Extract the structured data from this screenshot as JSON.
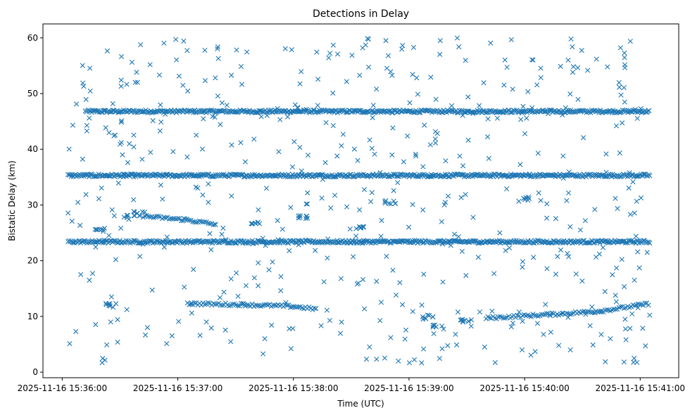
{
  "chart_data": {
    "type": "scatter",
    "title": "Detections in Delay",
    "xlabel": "Time (UTC)",
    "ylabel": "Bistatic Delay (km)",
    "marker": "x",
    "color": "#1f77b4",
    "grid": false,
    "legend": "none",
    "xlim": [
      "2025-11-16 15:35:50",
      "2025-11-16 15:41:20"
    ],
    "ylim": [
      -1,
      62.5
    ],
    "x_ticks": [
      "2025-11-16 15:36:00",
      "2025-11-16 15:37:00",
      "2025-11-16 15:38:00",
      "2025-11-16 15:39:00",
      "2025-11-16 15:40:00",
      "2025-11-16 15:41:00"
    ],
    "y_ticks": [
      0,
      10,
      20,
      30,
      40,
      50,
      60
    ],
    "time_range": [
      "2025-11-16 15:36:03",
      "2025-11-16 15:41:05"
    ],
    "series": [
      {
        "kind": "band",
        "y": 46.8,
        "from": "2025-11-16 15:36:12",
        "to": "2025-11-16 15:41:05"
      },
      {
        "kind": "band",
        "y": 35.3,
        "from": "2025-11-16 15:36:03",
        "to": "2025-11-16 15:41:05"
      },
      {
        "kind": "band",
        "y": 23.4,
        "from": "2025-11-16 15:36:03",
        "to": "2025-11-16 15:41:05"
      },
      {
        "kind": "track",
        "points": [
          [
            "2025-11-16 15:37:05",
            12.3
          ],
          [
            "2025-11-16 15:37:35",
            12.1
          ],
          [
            "2025-11-16 15:38:00",
            11.8
          ],
          [
            "2025-11-16 15:38:12",
            11.3
          ]
        ]
      },
      {
        "kind": "track",
        "points": [
          [
            "2025-11-16 15:39:40",
            9.7
          ],
          [
            "2025-11-16 15:40:20",
            10.5
          ],
          [
            "2025-11-16 15:40:40",
            11.0
          ],
          [
            "2025-11-16 15:41:05",
            12.3
          ]
        ]
      },
      {
        "kind": "track",
        "points": [
          [
            "2025-11-16 15:36:42",
            28.0
          ],
          [
            "2025-11-16 15:37:05",
            27.3
          ],
          [
            "2025-11-16 15:37:20",
            26.5
          ]
        ]
      },
      {
        "kind": "cluster",
        "points": [
          [
            "2025-11-16 15:36:35",
            27.8
          ],
          [
            "2025-11-16 15:36:40",
            28.5
          ],
          [
            "2025-11-16 15:38:35",
            26.1
          ],
          [
            "2025-11-16 15:38:50",
            30.5
          ],
          [
            "2025-11-16 15:39:10",
            9.8
          ],
          [
            "2025-11-16 15:39:15",
            8.1
          ],
          [
            "2025-11-16 15:39:30",
            9.2
          ],
          [
            "2025-11-16 15:40:00",
            31.0
          ],
          [
            "2025-11-16 15:36:20",
            25.5
          ],
          [
            "2025-11-16 15:37:40",
            27.0
          ],
          [
            "2025-11-16 15:38:05",
            28.0
          ],
          [
            "2025-11-16 15:36:25",
            12.0
          ]
        ]
      },
      {
        "kind": "scatter",
        "count": 520,
        "y_range": [
          1.5,
          60
        ],
        "from": "2025-11-16 15:36:03",
        "to": "2025-11-16 15:41:05"
      }
    ]
  }
}
